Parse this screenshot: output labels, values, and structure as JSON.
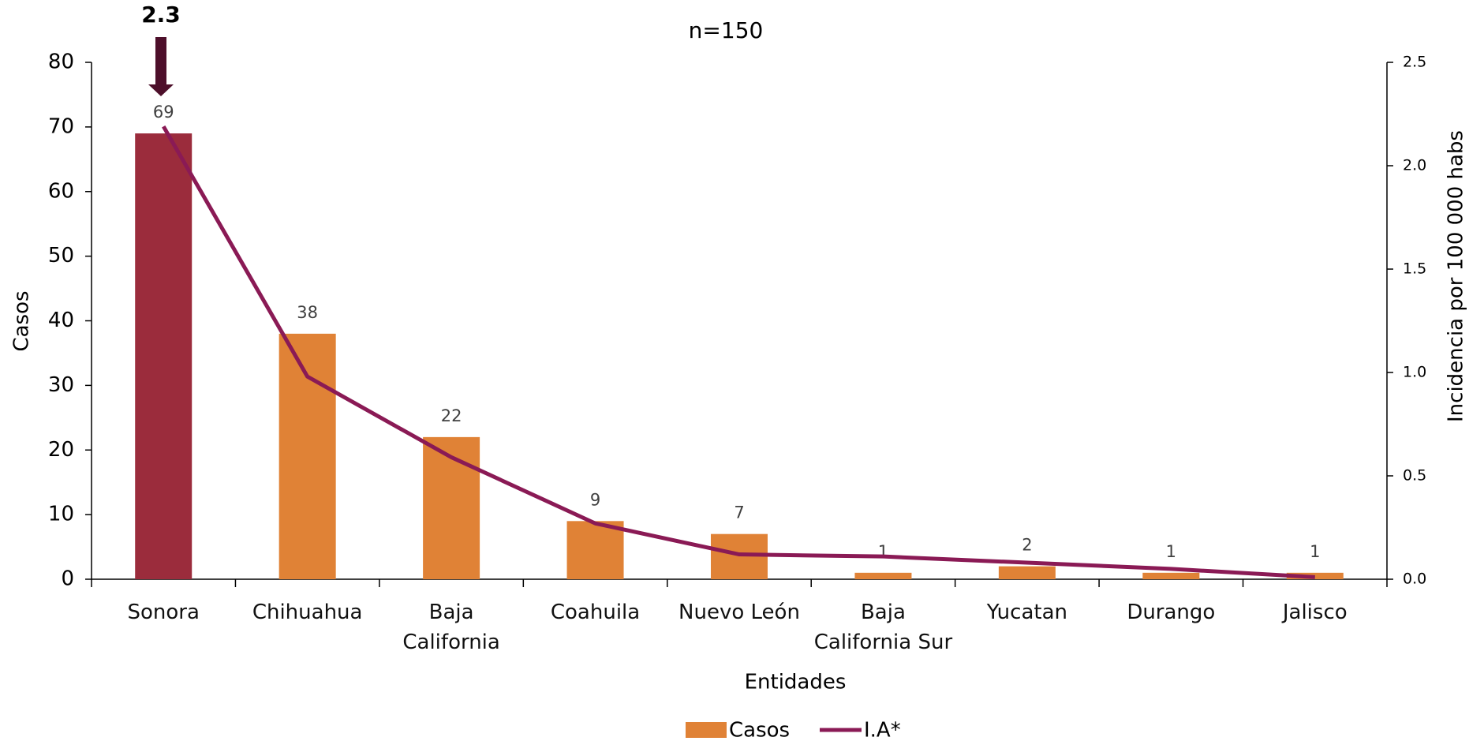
{
  "chart_data": {
    "type": "bar",
    "title": "n=150",
    "x_label": "Entidades",
    "y_label": "Casos",
    "y2_label": "Incidencia por 100 000 habs",
    "annotation": "2.3",
    "categories": [
      "Sonora",
      "Chihuahua",
      "Baja\nCalifornia",
      "Coahuila",
      "Nuevo León",
      "Baja\nCalifornia Sur",
      "Yucatan",
      "Durango",
      "Jalisco"
    ],
    "series": [
      {
        "name": "Casos",
        "type": "bar",
        "color": "#e08236",
        "colors": [
          "#9b2c3c",
          "#e08236",
          "#e08236",
          "#e08236",
          "#e08236",
          "#e08236",
          "#e08236",
          "#e08236",
          "#e08236"
        ],
        "values": [
          69,
          38,
          22,
          9,
          7,
          1,
          2,
          1,
          1
        ]
      },
      {
        "name": "I.A*",
        "type": "line",
        "axis": "y2",
        "color": "#8a1a55",
        "values": [
          2.19,
          0.98,
          0.59,
          0.27,
          0.12,
          0.11,
          0.08,
          0.05,
          0.01
        ]
      }
    ],
    "ylim": [
      0,
      80
    ],
    "yticks": [
      0,
      10,
      20,
      30,
      40,
      50,
      60,
      70,
      80
    ],
    "y2lim": [
      0,
      2.5
    ],
    "y2ticks": [
      {
        "value": 0,
        "label": "0.0"
      },
      0.5,
      {
        "value": 1,
        "label": "1.0"
      },
      1.5,
      {
        "value": 2,
        "label": "2.0"
      },
      2.5
    ]
  }
}
